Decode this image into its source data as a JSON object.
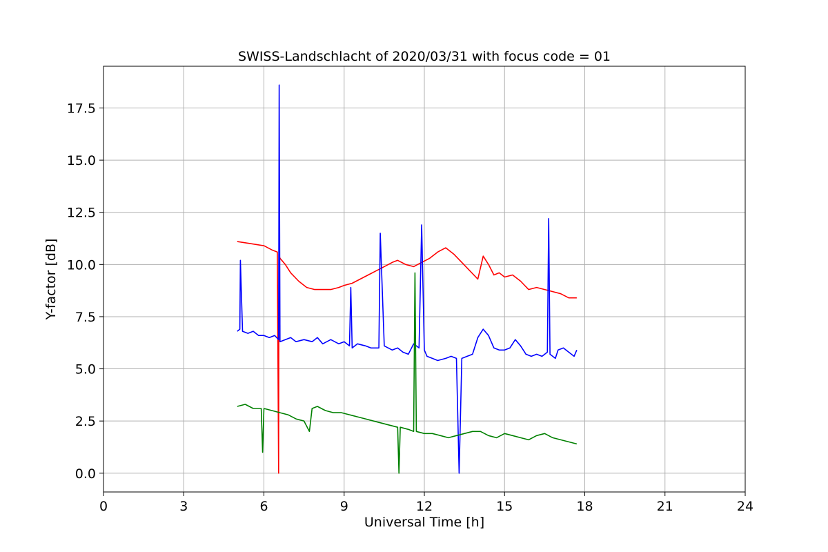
{
  "chart_data": {
    "type": "line",
    "title": "SWISS-Landschlacht of 2020/03/31 with focus code = 01",
    "xlabel": "Universal Time [h]",
    "ylabel": "Y-factor [dB]",
    "xlim": [
      0,
      24
    ],
    "ylim": [
      -0.9,
      19.5
    ],
    "xticks": [
      0,
      3,
      6,
      9,
      12,
      15,
      18,
      21,
      24
    ],
    "xtick_labels": [
      "0",
      "3",
      "6",
      "9",
      "12",
      "15",
      "18",
      "21",
      "24"
    ],
    "yticks": [
      0,
      2.5,
      5,
      7.5,
      10,
      12.5,
      15,
      17.5
    ],
    "ytick_labels": [
      "0.0",
      "2.5",
      "5.0",
      "7.5",
      "10.0",
      "12.5",
      "15.0",
      "17.5"
    ],
    "grid": true,
    "series": [
      {
        "color": "#ff0000",
        "x": [
          5.0,
          5.5,
          6.0,
          6.3,
          6.5,
          6.55,
          6.56,
          6.6,
          6.8,
          7.0,
          7.3,
          7.6,
          7.9,
          8.2,
          8.5,
          8.8,
          9.0,
          9.3,
          9.6,
          9.9,
          10.2,
          10.5,
          10.8,
          11.0,
          11.3,
          11.6,
          11.9,
          12.2,
          12.5,
          12.8,
          13.1,
          13.4,
          13.7,
          14.0,
          14.2,
          14.4,
          14.6,
          14.8,
          15.0,
          15.3,
          15.6,
          15.9,
          16.2,
          16.5,
          16.8,
          17.1,
          17.4,
          17.7
        ],
        "y": [
          11.1,
          11.0,
          10.9,
          10.7,
          10.6,
          0.0,
          10.5,
          10.3,
          10.0,
          9.6,
          9.2,
          8.9,
          8.8,
          8.8,
          8.8,
          8.9,
          9.0,
          9.1,
          9.3,
          9.5,
          9.7,
          9.9,
          10.1,
          10.2,
          10.0,
          9.9,
          10.1,
          10.3,
          10.6,
          10.8,
          10.5,
          10.1,
          9.7,
          9.3,
          10.4,
          10.0,
          9.5,
          9.6,
          9.4,
          9.5,
          9.2,
          8.8,
          8.9,
          8.8,
          8.7,
          8.6,
          8.4,
          8.4
        ]
      },
      {
        "color": "#0000ff",
        "x": [
          5.0,
          5.1,
          5.12,
          5.2,
          5.4,
          5.6,
          5.8,
          6.0,
          6.2,
          6.4,
          6.55,
          6.57,
          6.6,
          6.8,
          7.0,
          7.2,
          7.5,
          7.8,
          8.0,
          8.2,
          8.5,
          8.8,
          9.0,
          9.2,
          9.25,
          9.3,
          9.5,
          9.8,
          10.0,
          10.2,
          10.3,
          10.35,
          10.5,
          10.8,
          11.0,
          11.2,
          11.4,
          11.6,
          11.8,
          11.9,
          12.0,
          12.1,
          12.3,
          12.5,
          12.8,
          13.0,
          13.2,
          13.3,
          13.4,
          13.6,
          13.8,
          14.0,
          14.2,
          14.4,
          14.6,
          14.8,
          15.0,
          15.2,
          15.4,
          15.6,
          15.8,
          16.0,
          16.2,
          16.4,
          16.6,
          16.65,
          16.7,
          16.9,
          17.0,
          17.2,
          17.4,
          17.6,
          17.7
        ],
        "y": [
          6.8,
          6.9,
          10.2,
          6.8,
          6.7,
          6.8,
          6.6,
          6.6,
          6.5,
          6.6,
          6.4,
          18.6,
          6.3,
          6.4,
          6.5,
          6.3,
          6.4,
          6.3,
          6.5,
          6.2,
          6.4,
          6.2,
          6.3,
          6.1,
          8.9,
          6.0,
          6.2,
          6.1,
          6.0,
          6.0,
          6.0,
          11.5,
          6.1,
          5.9,
          6.0,
          5.8,
          5.7,
          6.2,
          6.0,
          11.9,
          5.9,
          5.6,
          5.5,
          5.4,
          5.5,
          5.6,
          5.5,
          0.0,
          5.5,
          5.6,
          5.7,
          6.5,
          6.9,
          6.6,
          6.0,
          5.9,
          5.9,
          6.0,
          6.4,
          6.1,
          5.7,
          5.6,
          5.7,
          5.6,
          5.8,
          12.2,
          5.7,
          5.5,
          5.9,
          6.0,
          5.8,
          5.6,
          5.9
        ]
      },
      {
        "color": "#008000",
        "x": [
          5.0,
          5.3,
          5.6,
          5.9,
          5.95,
          6.0,
          6.3,
          6.6,
          6.9,
          7.2,
          7.5,
          7.7,
          7.8,
          8.0,
          8.3,
          8.6,
          8.9,
          9.2,
          9.5,
          9.8,
          10.1,
          10.4,
          10.7,
          11.0,
          11.05,
          11.1,
          11.4,
          11.6,
          11.65,
          11.7,
          12.0,
          12.3,
          12.6,
          12.9,
          13.2,
          13.5,
          13.8,
          14.1,
          14.4,
          14.7,
          15.0,
          15.3,
          15.6,
          15.9,
          16.2,
          16.5,
          16.8,
          17.1,
          17.4,
          17.7
        ],
        "y": [
          3.2,
          3.3,
          3.1,
          3.1,
          1.0,
          3.1,
          3.0,
          2.9,
          2.8,
          2.6,
          2.5,
          2.0,
          3.1,
          3.2,
          3.0,
          2.9,
          2.9,
          2.8,
          2.7,
          2.6,
          2.5,
          2.4,
          2.3,
          2.2,
          0.0,
          2.2,
          2.1,
          2.0,
          9.6,
          2.0,
          1.9,
          1.9,
          1.8,
          1.7,
          1.8,
          1.9,
          2.0,
          2.0,
          1.8,
          1.7,
          1.9,
          1.8,
          1.7,
          1.6,
          1.8,
          1.9,
          1.7,
          1.6,
          1.5,
          1.4
        ]
      }
    ]
  }
}
